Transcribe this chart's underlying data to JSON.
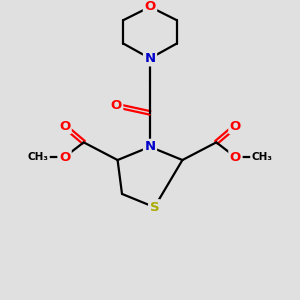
{
  "bg_color": "#e0e0e0",
  "atom_colors": {
    "C": "#000000",
    "N": "#0000cc",
    "O": "#ff0000",
    "S": "#aaaa00"
  },
  "bond_color": "#000000",
  "figsize": [
    3.0,
    3.0
  ],
  "dpi": 100,
  "xlim": [
    0,
    10
  ],
  "ylim": [
    0,
    10
  ]
}
